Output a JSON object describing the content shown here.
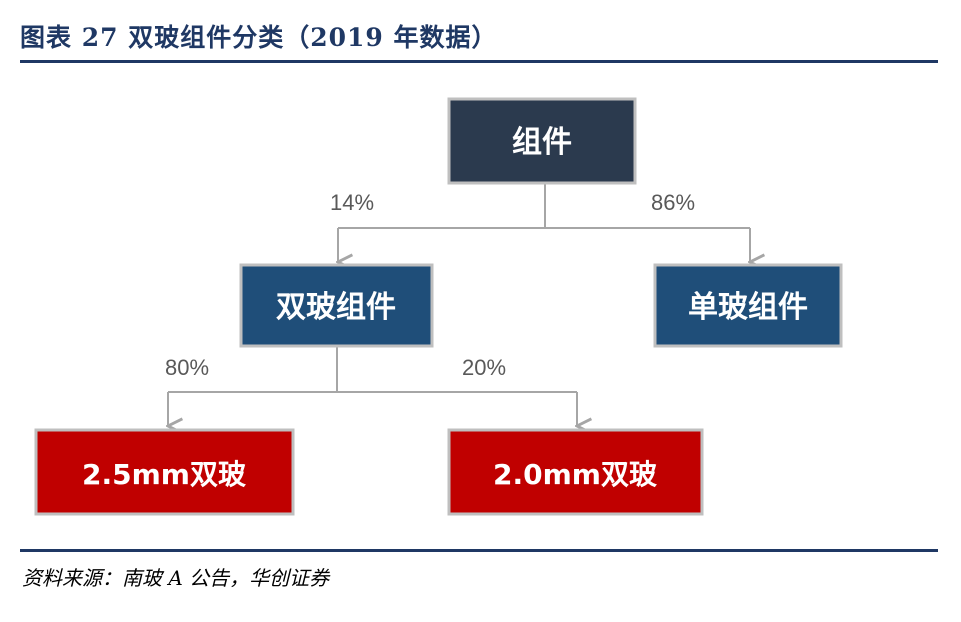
{
  "title": "图表 27    双玻组件分类（2019 年数据）",
  "source": "资料来源：南玻 A 公告，华创证券",
  "colors": {
    "navy": "#2b3a4e",
    "blue": "#1f4e79",
    "red": "#c00000",
    "rule": "#1f3864",
    "connector": "#a6a6a6",
    "border": "#bfbfbf"
  },
  "diagram": {
    "root": "组件",
    "level1": {
      "left": {
        "label": "双玻组件",
        "share": "14%"
      },
      "right": {
        "label": "单玻组件",
        "share": "86%"
      }
    },
    "level2": {
      "left": {
        "label": "2.5mm双玻",
        "share": "80%"
      },
      "right": {
        "label": "2.0mm双玻",
        "share": "20%"
      }
    }
  }
}
